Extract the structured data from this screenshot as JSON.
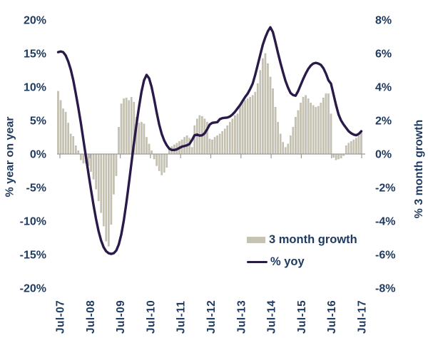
{
  "chart_data": {
    "type": "bar+line",
    "title": "",
    "x_start": "Jul-07",
    "x_end": "Jul-17",
    "x_frequency": "monthly",
    "x_tick_labels": [
      "Jul-07",
      "Jul-08",
      "Jul-09",
      "Jul-10",
      "Jul-11",
      "Jul-12",
      "Jul-13",
      "Jul-14",
      "Jul-15",
      "Jul-16",
      "Jul-17"
    ],
    "left_axis": {
      "title": "% year on year",
      "tick_labels": [
        "20%",
        "15%",
        "10%",
        "5%",
        "0%",
        "-5%",
        "-10%",
        "-15%",
        "-20%"
      ],
      "range": [
        -20,
        20
      ]
    },
    "right_axis": {
      "title": "% 3 month growth",
      "tick_labels": [
        "8%",
        "6%",
        "4%",
        "2%",
        "0%",
        "-2%",
        "-4%",
        "-6%",
        "-8%"
      ],
      "range": [
        -8,
        8
      ]
    },
    "grid": "off",
    "legend_position": "inside-lower-right",
    "series": [
      {
        "name": "3 month growth",
        "type": "bar",
        "axis": "right",
        "color": "#c6c3b2",
        "values": [
          3.75,
          3.2,
          2.7,
          2.5,
          1.85,
          1.2,
          1.05,
          0.5,
          0.2,
          -0.35,
          -0.55,
          -0.55,
          -0.7,
          -1.05,
          -1.5,
          -2.1,
          -2.8,
          -3.5,
          -4.3,
          -5.2,
          -5.5,
          -4.2,
          -2.4,
          -1.3,
          1.6,
          3.0,
          3.3,
          3.35,
          3.2,
          3.4,
          3.1,
          2.2,
          1.85,
          1.9,
          1.8,
          1.0,
          0.6,
          0.2,
          -0.3,
          -0.7,
          -1.0,
          -1.25,
          -1.1,
          -0.8,
          0.3,
          0.45,
          0.55,
          0.65,
          0.75,
          0.85,
          1.0,
          1.1,
          0.95,
          0.4,
          1.7,
          2.1,
          2.3,
          2.25,
          2.1,
          1.9,
          0.9,
          0.85,
          1.0,
          1.1,
          1.2,
          1.35,
          1.5,
          1.7,
          1.9,
          2.1,
          2.3,
          2.4,
          2.9,
          3.1,
          3.2,
          3.3,
          3.4,
          3.5,
          3.7,
          4.2,
          5.0,
          5.7,
          6.0,
          5.4,
          4.6,
          3.9,
          2.8,
          1.9,
          1.2,
          0.7,
          0.4,
          0.6,
          1.1,
          1.6,
          2.2,
          2.6,
          3.05,
          3.4,
          3.5,
          3.3,
          3.05,
          2.9,
          2.8,
          2.85,
          3.05,
          3.35,
          3.6,
          3.6,
          2.4,
          -0.2,
          -0.35,
          -0.3,
          -0.25,
          -0.1,
          0.5,
          0.65,
          0.75,
          0.85,
          0.95,
          1.1,
          1.3
        ]
      },
      {
        "name": "% yoy",
        "type": "line",
        "axis": "left",
        "color": "#2a1a4a",
        "values": [
          15.2,
          15.3,
          15.2,
          14.7,
          13.8,
          12.6,
          11.0,
          9.0,
          6.9,
          4.6,
          2.1,
          -0.4,
          -2.9,
          -5.3,
          -7.6,
          -9.7,
          -11.5,
          -12.9,
          -13.9,
          -14.5,
          -14.8,
          -14.9,
          -14.8,
          -14.4,
          -13.5,
          -12.0,
          -9.9,
          -7.3,
          -4.4,
          -1.4,
          1.6,
          4.4,
          7.0,
          9.3,
          11.0,
          11.8,
          11.3,
          10.0,
          8.2,
          6.2,
          4.4,
          3.0,
          2.0,
          1.3,
          0.8,
          0.6,
          0.6,
          0.7,
          0.9,
          1.1,
          1.2,
          1.3,
          1.5,
          2.1,
          2.8,
          2.9,
          2.75,
          2.8,
          3.1,
          3.7,
          4.4,
          4.65,
          4.7,
          4.75,
          5.2,
          5.35,
          5.4,
          5.45,
          5.6,
          5.9,
          6.3,
          6.8,
          7.3,
          7.9,
          8.5,
          9.0,
          9.7,
          10.5,
          11.8,
          13.3,
          14.8,
          16.3,
          17.4,
          18.3,
          18.9,
          18.2,
          16.7,
          15.1,
          13.6,
          12.2,
          10.9,
          9.9,
          9.1,
          8.8,
          8.7,
          9.4,
          10.3,
          11.2,
          12.0,
          12.7,
          13.2,
          13.5,
          13.6,
          13.5,
          13.3,
          12.8,
          12.0,
          11.0,
          10.5,
          8.9,
          7.3,
          5.9,
          5.0,
          4.4,
          3.9,
          3.4,
          3.1,
          2.9,
          2.8,
          3.0,
          3.4
        ]
      }
    ]
  },
  "style": {
    "axis_line_color": "#9c9c9c",
    "text_color": "#1f3a5f",
    "bar_color": "#c6c3b2",
    "bar_edge_color": "#b2afa0",
    "line_color": "#2a1a4a",
    "background": "#ffffff"
  }
}
